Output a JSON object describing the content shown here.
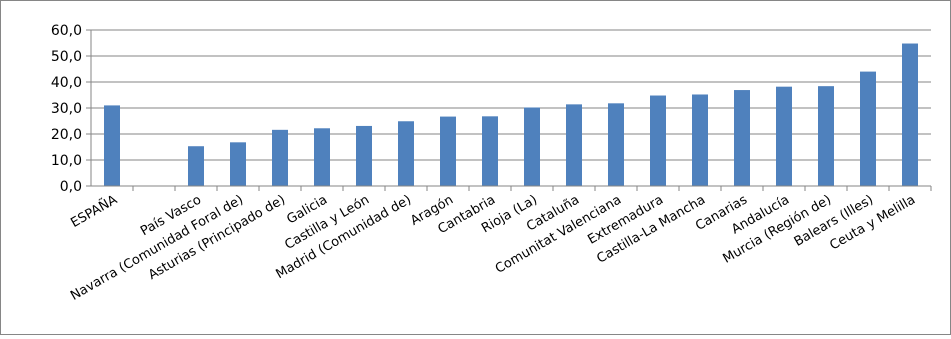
{
  "chart_data": {
    "type": "bar",
    "title": "",
    "xlabel": "",
    "ylabel": "",
    "ylim": [
      0,
      60
    ],
    "yticks": [
      "0,0",
      "10,0",
      "20,0",
      "30,0",
      "40,0",
      "50,0",
      "60,0"
    ],
    "grid": true,
    "legend": "none",
    "bar_color": "#4F81BD",
    "categories": [
      "ESPAÑA",
      "",
      "País Vasco",
      "Navarra (Comunidad Foral de)",
      "Asturias (Principado de)",
      "Galicia",
      "Castilla y León",
      "Madrid (Comunidad de)",
      "Aragón",
      "Cantabria",
      "Rioja (La)",
      "Cataluña",
      "Comunitat Valenciana",
      "Extremadura",
      "Castilla-La Mancha",
      "Canarias",
      "Andalucía",
      "Murcia (Región de)",
      "Balears (Illes)",
      "Ceuta y Melilla"
    ],
    "values": [
      31.0,
      null,
      15.3,
      16.8,
      21.6,
      22.2,
      23.1,
      24.9,
      26.7,
      26.8,
      30.2,
      31.4,
      31.8,
      34.8,
      35.2,
      36.9,
      38.2,
      38.4,
      44.0,
      54.8
    ]
  }
}
